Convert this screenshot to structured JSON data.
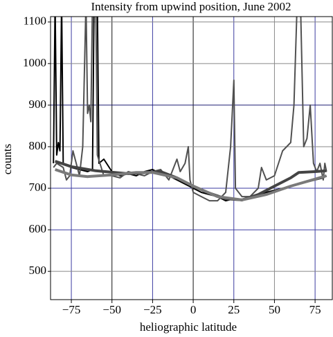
{
  "chart_data": {
    "type": "line",
    "title": "Intensity from upwind position, June 2002",
    "x_label": "heliographic latitude",
    "y_label": "counts",
    "xlim": [
      -87.8,
      85.6
    ],
    "ylim": [
      432,
      1113
    ],
    "xticks": [
      {
        "value": -75,
        "label": "−75"
      },
      {
        "value": -50,
        "label": "−50"
      },
      {
        "value": -25,
        "label": "−25"
      },
      0,
      25,
      50,
      75
    ],
    "yticks": [
      500,
      600,
      700,
      800,
      900,
      1000,
      1100
    ],
    "grid": true,
    "xgrid_colors": [
      "#3a3aa0",
      "#111111",
      "#3a3aa0",
      "#111111",
      "#3a3aa0",
      "#888888",
      "#3a3aa0"
    ],
    "ygrid_colors": [
      "#888888",
      "#3a3aa0",
      "#3a3aa0",
      "#888888",
      "#1a1a70",
      "#888888",
      "#888888"
    ],
    "series": [
      {
        "color": "#000000",
        "width": 2,
        "x": [
          -86,
          -85,
          -84,
          -83,
          -82,
          -81,
          -80,
          -75,
          -70,
          -65,
          -62,
          -61,
          -59,
          -58,
          -55,
          -50,
          -45,
          -40,
          -35,
          -30,
          -25,
          -20,
          -15,
          -10,
          -5,
          0,
          5,
          10,
          15,
          20,
          25,
          30,
          35,
          40,
          45,
          50,
          55,
          60,
          65,
          70,
          75,
          80,
          82
        ],
        "values": [
          760,
          1150,
          780,
          810,
          790,
          1150,
          760,
          750,
          745,
          740,
          745,
          1150,
          1150,
          760,
          770,
          740,
          730,
          735,
          730,
          740,
          745,
          735,
          730,
          720,
          710,
          700,
          690,
          685,
          680,
          670,
          675,
          670,
          680,
          685,
          690,
          695,
          700,
          705,
          710,
          715,
          720,
          725,
          730
        ]
      },
      {
        "color": "#505050",
        "width": 2,
        "x": [
          -86,
          -84,
          -80,
          -78,
          -76,
          -74,
          -72,
          -70,
          -68,
          -66,
          -65,
          -64,
          -63,
          -62,
          -60,
          -59,
          -55,
          -50,
          -45,
          -40,
          -35,
          -30,
          -25,
          -20,
          -15,
          -10,
          -8,
          -5,
          -3,
          -2,
          0,
          5,
          10,
          15,
          20,
          23,
          25,
          26,
          30,
          35,
          40,
          42,
          45,
          50,
          55,
          60,
          62,
          64,
          66,
          68,
          70,
          72,
          74,
          76,
          78,
          80,
          81,
          82
        ],
        "values": [
          750,
          760,
          750,
          720,
          730,
          790,
          760,
          730,
          800,
          1150,
          880,
          900,
          860,
          1150,
          1150,
          780,
          730,
          730,
          725,
          740,
          735,
          730,
          740,
          745,
          720,
          770,
          740,
          760,
          800,
          720,
          690,
          680,
          670,
          670,
          690,
          800,
          960,
          700,
          680,
          680,
          700,
          750,
          720,
          730,
          790,
          810,
          900,
          1150,
          1150,
          800,
          820,
          900,
          760,
          740,
          760,
          720,
          760,
          740
        ]
      },
      {
        "color": "#444444",
        "width": 4,
        "x": [
          -85,
          -75,
          -60,
          -40,
          -20,
          -10,
          0,
          10,
          20,
          30,
          40,
          50,
          60,
          65,
          75,
          82
        ],
        "values": [
          765,
          752,
          742,
          735,
          740,
          725,
          705,
          688,
          675,
          672,
          685,
          705,
          725,
          738,
          740,
          742
        ]
      },
      {
        "color": "#7a7a7a",
        "width": 4,
        "x": [
          -85,
          -75,
          -65,
          -50,
          -35,
          -25,
          -10,
          0,
          15,
          30,
          45,
          60,
          75,
          82
        ],
        "values": [
          745,
          732,
          728,
          732,
          738,
          738,
          725,
          705,
          680,
          672,
          685,
          705,
          722,
          730
        ]
      }
    ]
  }
}
